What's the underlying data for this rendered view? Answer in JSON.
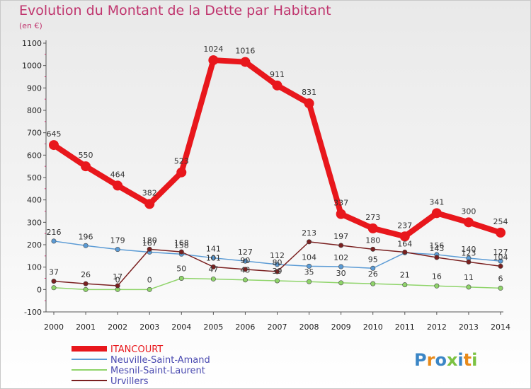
{
  "chart_data": {
    "type": "line",
    "title": "Evolution du Montant de la Dette par Habitant",
    "subtitle": "(en €)",
    "x": [
      "2000",
      "2001",
      "2002",
      "2003",
      "2004",
      "2005",
      "2006",
      "2007",
      "2008",
      "2009",
      "2010",
      "2011",
      "2012",
      "2013",
      "2014"
    ],
    "ylim": [
      -100,
      1100
    ],
    "yticks": [
      -100,
      0,
      100,
      200,
      300,
      400,
      500,
      600,
      700,
      800,
      900,
      1000,
      1100
    ],
    "grid": false,
    "legend_position": "bottom-left",
    "series": [
      {
        "name": "ITANCOURT",
        "color": "#e8171c",
        "values": [
          645,
          550,
          464,
          382,
          523,
          1024,
          1016,
          911,
          831,
          337,
          273,
          237,
          341,
          300,
          254
        ]
      },
      {
        "name": "Neuville-Saint-Amand",
        "color": "#5b9bd5",
        "values": [
          216,
          196,
          179,
          167,
          158,
          141,
          127,
          112,
          104,
          102,
          95,
          164,
          156,
          140,
          127
        ]
      },
      {
        "name": "Mesnil-Saint-Laurent",
        "color": "#8fd46a",
        "values": [
          8,
          0,
          0,
          0,
          50,
          47,
          43,
          39,
          35,
          30,
          26,
          21,
          16,
          11,
          6
        ]
      },
      {
        "name": "Urvillers",
        "color": "#7a2020",
        "values": [
          37,
          26,
          17,
          180,
          168,
          101,
          90,
          80,
          213,
          197,
          180,
          167,
          143,
          123,
          104
        ]
      }
    ],
    "labels": {
      "ITANCOURT": [
        "645",
        "550",
        "464",
        "382",
        "523",
        "1024",
        "1016",
        "911",
        "831",
        "337",
        "273",
        "237",
        "341",
        "300",
        "254"
      ],
      "Neuville-Saint-Amand": [
        "216",
        "196",
        "179",
        "167",
        "158",
        "141",
        "127",
        "112",
        "104",
        "102",
        "95",
        "164",
        "156",
        "140",
        "127"
      ],
      "Mesnil-Saint-Laurent": [
        "",
        "",
        "0",
        "0",
        "50",
        "47",
        "43",
        "39",
        "35",
        "30",
        "26",
        "21",
        "16",
        "11",
        "6"
      ],
      "Urvillers": [
        "37",
        "26",
        "17",
        "180",
        "168",
        "101",
        "90",
        "80",
        "213",
        "197",
        "180",
        "",
        "143",
        "123",
        "104"
      ]
    }
  },
  "brand": {
    "name": "Proxiti"
  }
}
